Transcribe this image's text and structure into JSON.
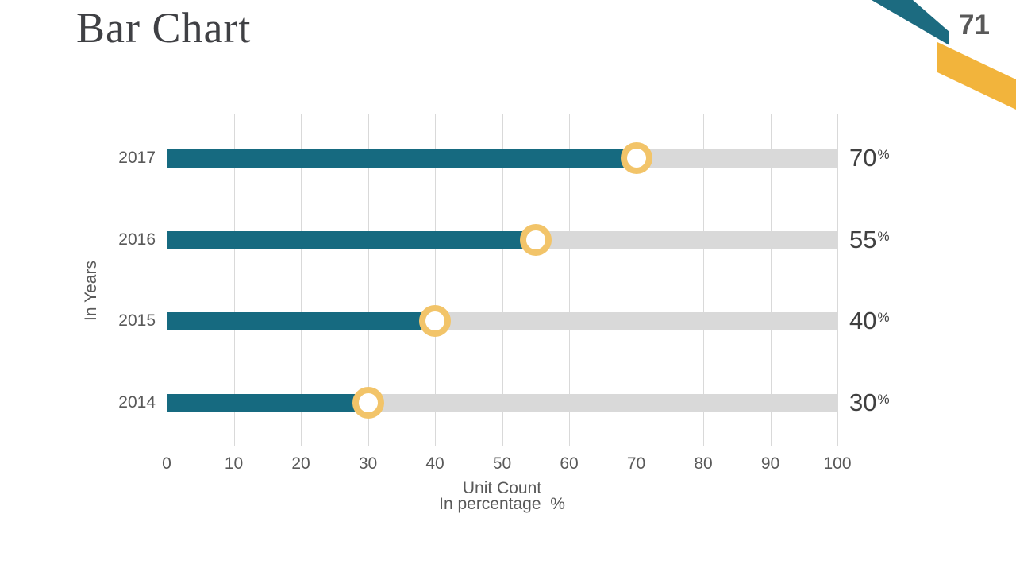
{
  "slide": {
    "title": "Bar Chart",
    "page_number": "71"
  },
  "colors": {
    "bar_teal": "#166a80",
    "ribbon_teal": "#1c6b80",
    "ribbon_gold": "#f2b43c",
    "marker_ring_gold": "#f2c469",
    "bar_track_gray": "#d9d9d9",
    "gridline_gray": "#d9d9d9",
    "axis_text_gray": "#595959",
    "title_text_gray": "#3f4044",
    "value_text_gray": "#404040"
  },
  "chart_data": {
    "type": "bar",
    "orientation": "horizontal",
    "categories": [
      "2017",
      "2016",
      "2015",
      "2014"
    ],
    "values": [
      70,
      55,
      40,
      30
    ],
    "value_suffix": "%",
    "xlabel": "Unit Count",
    "xlabel_line2": "In percentage  %",
    "ylabel": "In Years",
    "xlim": [
      0,
      100
    ],
    "xticks": [
      0,
      10,
      20,
      30,
      40,
      50,
      60,
      70,
      80,
      90,
      100
    ],
    "grid": true,
    "legend": "none",
    "track_full_value": 100,
    "marker_style": "gold-ring-circle-at-value-end"
  }
}
